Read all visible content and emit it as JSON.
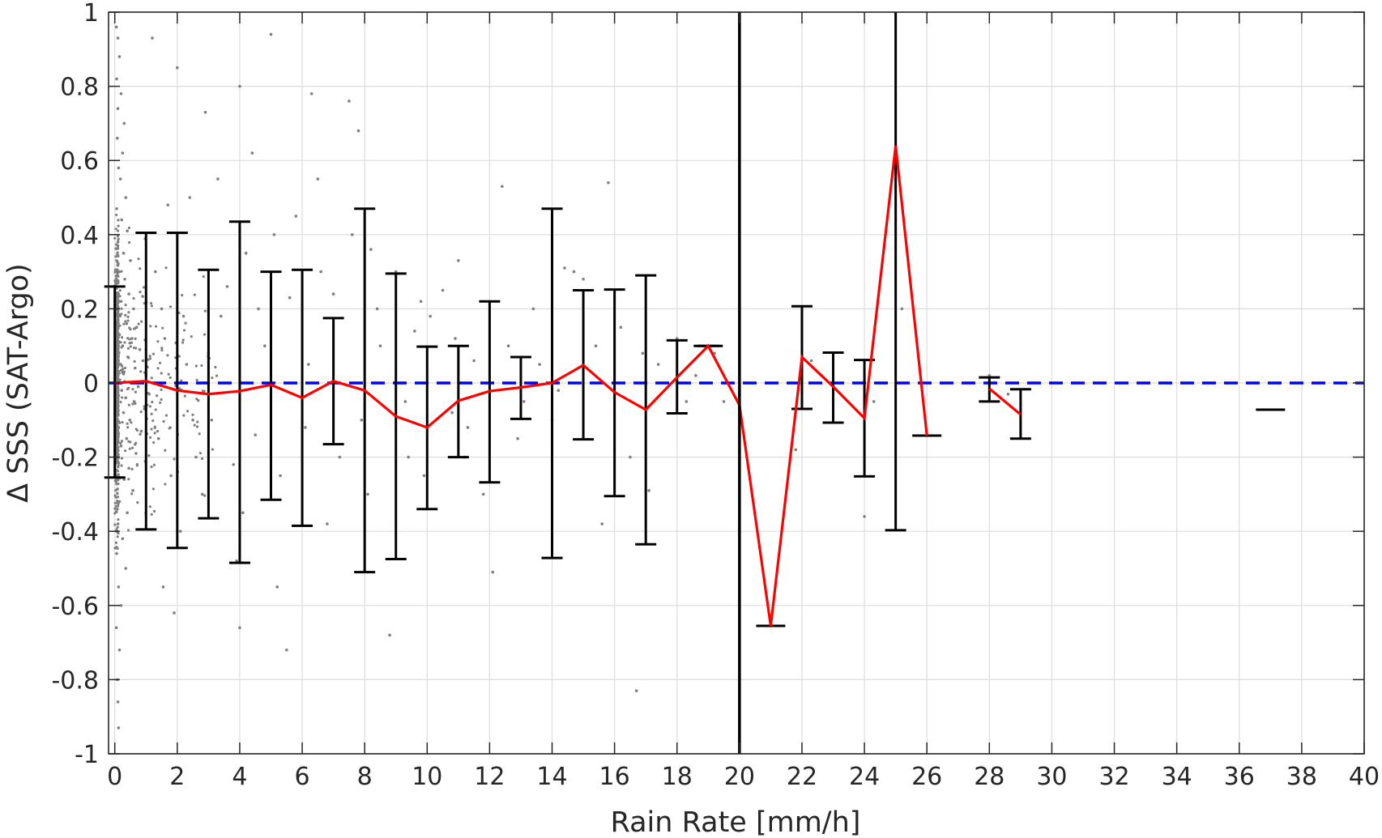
{
  "chart_data": {
    "type": "scatter",
    "title": "",
    "xlabel": "Rain Rate [mm/h]",
    "ylabel": "Δ SSS (SAT-Argo)",
    "xlim": [
      -0.2,
      40
    ],
    "ylim": [
      -1,
      1
    ],
    "xticks": [
      0,
      2,
      4,
      6,
      8,
      10,
      12,
      14,
      16,
      18,
      20,
      22,
      24,
      26,
      28,
      30,
      32,
      34,
      36,
      38,
      40
    ],
    "yticks": [
      -1,
      -0.8,
      -0.6,
      -0.4,
      -0.2,
      0,
      0.2,
      0.4,
      0.6,
      0.8,
      1
    ],
    "ytick_labels": [
      "-1",
      "-0.8",
      "-0.6",
      "-0.4",
      "-0.2",
      "0",
      "0.2",
      "0.4",
      "0.6",
      "0.8",
      "1"
    ],
    "grid": true,
    "reference_line": {
      "y": 0,
      "style": "dashed",
      "color": "#0000ff"
    },
    "vertical_line": {
      "x": 20,
      "color": "#000000"
    },
    "colors": {
      "scatter": "#7f7f7f",
      "mean_line": "#ff0000",
      "errorbar": "#000000"
    },
    "scatter_points_sample": [
      [
        0.05,
        0.96
      ],
      [
        0.1,
        0.93
      ],
      [
        0.15,
        0.88
      ],
      [
        0.06,
        0.82
      ],
      [
        0.2,
        0.78
      ],
      [
        0.1,
        0.74
      ],
      [
        0.3,
        0.7
      ],
      [
        0.08,
        0.66
      ],
      [
        0.25,
        0.62
      ],
      [
        0.12,
        0.58
      ],
      [
        0.18,
        0.55
      ],
      [
        0.35,
        0.5
      ],
      [
        0.06,
        0.47
      ],
      [
        0.22,
        0.44
      ],
      [
        0.4,
        0.41
      ],
      [
        0.1,
        0.38
      ],
      [
        0.28,
        0.35
      ],
      [
        0.5,
        0.33
      ],
      [
        0.15,
        0.3
      ],
      [
        0.32,
        0.28
      ],
      [
        0.05,
        0.26
      ],
      [
        0.45,
        0.24
      ],
      [
        0.2,
        0.22
      ],
      [
        0.6,
        0.2
      ],
      [
        0.1,
        0.18
      ],
      [
        0.38,
        0.16
      ],
      [
        0.7,
        0.15
      ],
      [
        0.15,
        0.13
      ],
      [
        0.55,
        0.12
      ],
      [
        0.25,
        0.1
      ],
      [
        0.8,
        0.09
      ],
      [
        0.05,
        0.08
      ],
      [
        0.42,
        0.07
      ],
      [
        0.9,
        0.06
      ],
      [
        0.18,
        0.05
      ],
      [
        0.65,
        0.04
      ],
      [
        0.3,
        0.03
      ],
      [
        1.0,
        0.02
      ],
      [
        0.1,
        0.01
      ],
      [
        0.5,
        0.0
      ],
      [
        0.75,
        -0.01
      ],
      [
        0.22,
        -0.02
      ],
      [
        1.1,
        -0.03
      ],
      [
        0.35,
        -0.04
      ],
      [
        0.62,
        -0.05
      ],
      [
        0.08,
        -0.06
      ],
      [
        0.95,
        -0.07
      ],
      [
        0.28,
        -0.08
      ],
      [
        0.48,
        -0.1
      ],
      [
        0.12,
        -0.12
      ],
      [
        0.85,
        -0.13
      ],
      [
        0.38,
        -0.15
      ],
      [
        0.2,
        -0.17
      ],
      [
        0.68,
        -0.19
      ],
      [
        0.05,
        -0.21
      ],
      [
        0.45,
        -0.23
      ],
      [
        0.3,
        -0.26
      ],
      [
        0.58,
        -0.29
      ],
      [
        0.15,
        -0.32
      ],
      [
        0.4,
        -0.35
      ],
      [
        0.1,
        -0.38
      ],
      [
        0.25,
        -0.42
      ],
      [
        0.06,
        -0.46
      ],
      [
        0.35,
        -0.5
      ],
      [
        0.12,
        -0.55
      ],
      [
        0.2,
        -0.6
      ],
      [
        0.05,
        -0.66
      ],
      [
        0.15,
        -0.72
      ],
      [
        0.08,
        -0.8
      ],
      [
        0.1,
        -0.86
      ],
      [
        0.12,
        -0.93
      ],
      [
        1.2,
        0.93
      ],
      [
        1.3,
        0.3
      ],
      [
        1.5,
        0.2
      ],
      [
        1.4,
        -0.15
      ],
      [
        1.6,
        0.12
      ],
      [
        1.8,
        -0.25
      ],
      [
        1.7,
        0.48
      ],
      [
        2.0,
        0.85
      ],
      [
        2.2,
        0.18
      ],
      [
        2.4,
        0.5
      ],
      [
        2.1,
        -0.4
      ],
      [
        2.5,
        -0.1
      ],
      [
        2.3,
        0.05
      ],
      [
        2.6,
        -0.2
      ],
      [
        1.9,
        -0.62
      ],
      [
        1.55,
        -0.55
      ],
      [
        2.9,
        0.73
      ],
      [
        3.1,
        -0.1
      ],
      [
        3.4,
        0.18
      ],
      [
        2.8,
        -0.3
      ],
      [
        3.6,
        0.26
      ],
      [
        3.3,
        0.55
      ],
      [
        3.8,
        -0.22
      ],
      [
        3.0,
        0.08
      ],
      [
        4.0,
        0.8
      ],
      [
        4.2,
        0.35
      ],
      [
        4.5,
        -0.14
      ],
      [
        4.4,
        0.62
      ],
      [
        4.1,
        -0.35
      ],
      [
        4.6,
        0.2
      ],
      [
        3.9,
        -0.48
      ],
      [
        4.0,
        -0.66
      ],
      [
        5.1,
        0.4
      ],
      [
        5.3,
        -0.25
      ],
      [
        5.6,
        0.23
      ],
      [
        5.2,
        -0.55
      ],
      [
        4.8,
        0.1
      ],
      [
        5.5,
        -0.72
      ],
      [
        5.0,
        0.94
      ],
      [
        5.8,
        0.45
      ],
      [
        6.3,
        0.78
      ],
      [
        6.1,
        -0.12
      ],
      [
        6.6,
        0.3
      ],
      [
        6.8,
        -0.38
      ],
      [
        6.2,
        0.05
      ],
      [
        7.0,
        0.24
      ],
      [
        7.2,
        -0.2
      ],
      [
        6.5,
        0.55
      ],
      [
        7.5,
        0.76
      ],
      [
        7.8,
        0.68
      ],
      [
        8.2,
        0.36
      ],
      [
        7.9,
        -0.1
      ],
      [
        8.5,
        0.1
      ],
      [
        8.1,
        -0.3
      ],
      [
        7.6,
        0.4
      ],
      [
        8.4,
        0.2
      ],
      [
        9.0,
        0.3
      ],
      [
        9.3,
        -0.05
      ],
      [
        9.6,
        0.14
      ],
      [
        8.8,
        -0.68
      ],
      [
        9.8,
        0.22
      ],
      [
        9.4,
        -0.2
      ],
      [
        10.1,
        0.18
      ],
      [
        9.9,
        -0.25
      ],
      [
        10.5,
        0.25
      ],
      [
        10.8,
        -0.08
      ],
      [
        11.0,
        0.33
      ],
      [
        11.3,
        -0.12
      ],
      [
        11.5,
        0.06
      ],
      [
        11.8,
        -0.3
      ],
      [
        10.9,
        0.12
      ],
      [
        11.2,
        -0.2
      ],
      [
        12.1,
        -0.51
      ],
      [
        12.4,
        0.53
      ],
      [
        12.6,
        0.1
      ],
      [
        13.1,
        -0.05
      ],
      [
        13.4,
        0.2
      ],
      [
        12.9,
        -0.15
      ],
      [
        13.6,
        0.05
      ],
      [
        14.0,
        -0.1
      ],
      [
        14.4,
        0.31
      ],
      [
        14.7,
        0.3
      ],
      [
        15.0,
        0.28
      ],
      [
        14.2,
        -0.02
      ],
      [
        15.4,
        0.1
      ],
      [
        15.8,
        0.54
      ],
      [
        15.6,
        -0.38
      ],
      [
        16.2,
        0.15
      ],
      [
        16.5,
        -0.2
      ],
      [
        16.9,
        0.08
      ],
      [
        17.1,
        -0.29
      ],
      [
        16.7,
        -0.83
      ],
      [
        17.4,
        0.05
      ],
      [
        18.0,
        0.12
      ],
      [
        18.3,
        -0.05
      ],
      [
        18.6,
        0.02
      ],
      [
        19.2,
        0.08
      ],
      [
        19.5,
        -0.05
      ],
      [
        21.8,
        -0.18
      ],
      [
        22.3,
        0.06
      ],
      [
        24.0,
        -0.36
      ],
      [
        24.3,
        -0.05
      ],
      [
        25.2,
        0.2
      ],
      [
        28.0,
        0.02
      ],
      [
        28.6,
        -0.03
      ]
    ],
    "errorbars": [
      {
        "x": 0,
        "mean": 0.0,
        "low": -0.255,
        "high": 0.26
      },
      {
        "x": 1,
        "mean": 0.005,
        "low": -0.395,
        "high": 0.405
      },
      {
        "x": 2,
        "mean": -0.02,
        "low": -0.445,
        "high": 0.405
      },
      {
        "x": 3,
        "mean": -0.03,
        "low": -0.365,
        "high": 0.305
      },
      {
        "x": 4,
        "mean": -0.022,
        "low": -0.485,
        "high": 0.435
      },
      {
        "x": 5,
        "mean": -0.005,
        "low": -0.315,
        "high": 0.3
      },
      {
        "x": 6,
        "mean": -0.04,
        "low": -0.385,
        "high": 0.305
      },
      {
        "x": 7,
        "mean": 0.005,
        "low": -0.165,
        "high": 0.175
      },
      {
        "x": 8,
        "mean": -0.02,
        "low": -0.51,
        "high": 0.47
      },
      {
        "x": 9,
        "mean": -0.09,
        "low": -0.475,
        "high": 0.295
      },
      {
        "x": 10,
        "mean": -0.12,
        "low": -0.34,
        "high": 0.098
      },
      {
        "x": 11,
        "mean": -0.048,
        "low": -0.2,
        "high": 0.1
      },
      {
        "x": 12,
        "mean": -0.022,
        "low": -0.268,
        "high": 0.22
      },
      {
        "x": 13,
        "mean": -0.012,
        "low": -0.097,
        "high": 0.07
      },
      {
        "x": 14,
        "mean": 0.0,
        "low": -0.472,
        "high": 0.47
      },
      {
        "x": 15,
        "mean": 0.048,
        "low": -0.152,
        "high": 0.25
      },
      {
        "x": 16,
        "mean": -0.025,
        "low": -0.305,
        "high": 0.252
      },
      {
        "x": 17,
        "mean": -0.072,
        "low": -0.435,
        "high": 0.29
      },
      {
        "x": 18,
        "mean": 0.015,
        "low": -0.082,
        "high": 0.115
      },
      {
        "x": 19,
        "mean": 0.1,
        "low": 0.1,
        "high": 0.1
      },
      {
        "x": 20,
        "mean": -0.06,
        "low": -1,
        "high": 1
      },
      {
        "x": 21,
        "mean": -0.655,
        "low": -0.655,
        "high": -0.655
      },
      {
        "x": 22,
        "mean": 0.07,
        "low": -0.07,
        "high": 0.207
      },
      {
        "x": 23,
        "mean": -0.01,
        "low": -0.107,
        "high": 0.082
      },
      {
        "x": 24,
        "mean": -0.095,
        "low": -0.252,
        "high": 0.062
      },
      {
        "x": 25,
        "mean": 0.64,
        "low": -0.397,
        "high": 1
      },
      {
        "x": 26,
        "mean": -0.142,
        "low": -0.142,
        "high": -0.142
      },
      {
        "x": 28,
        "mean": -0.015,
        "low": -0.05,
        "high": 0.015
      },
      {
        "x": 29,
        "mean": -0.085,
        "low": -0.15,
        "high": -0.017
      },
      {
        "x": 37,
        "mean": -0.072,
        "low": -0.072,
        "high": -0.072
      }
    ],
    "mean_line_segments": [
      [
        0,
        1,
        2,
        3,
        4,
        5,
        6,
        7,
        8,
        9,
        10,
        11,
        12,
        13,
        14,
        15,
        16,
        17,
        18,
        19,
        20,
        21,
        22,
        23,
        24,
        25,
        26
      ],
      [
        28,
        29
      ]
    ]
  }
}
